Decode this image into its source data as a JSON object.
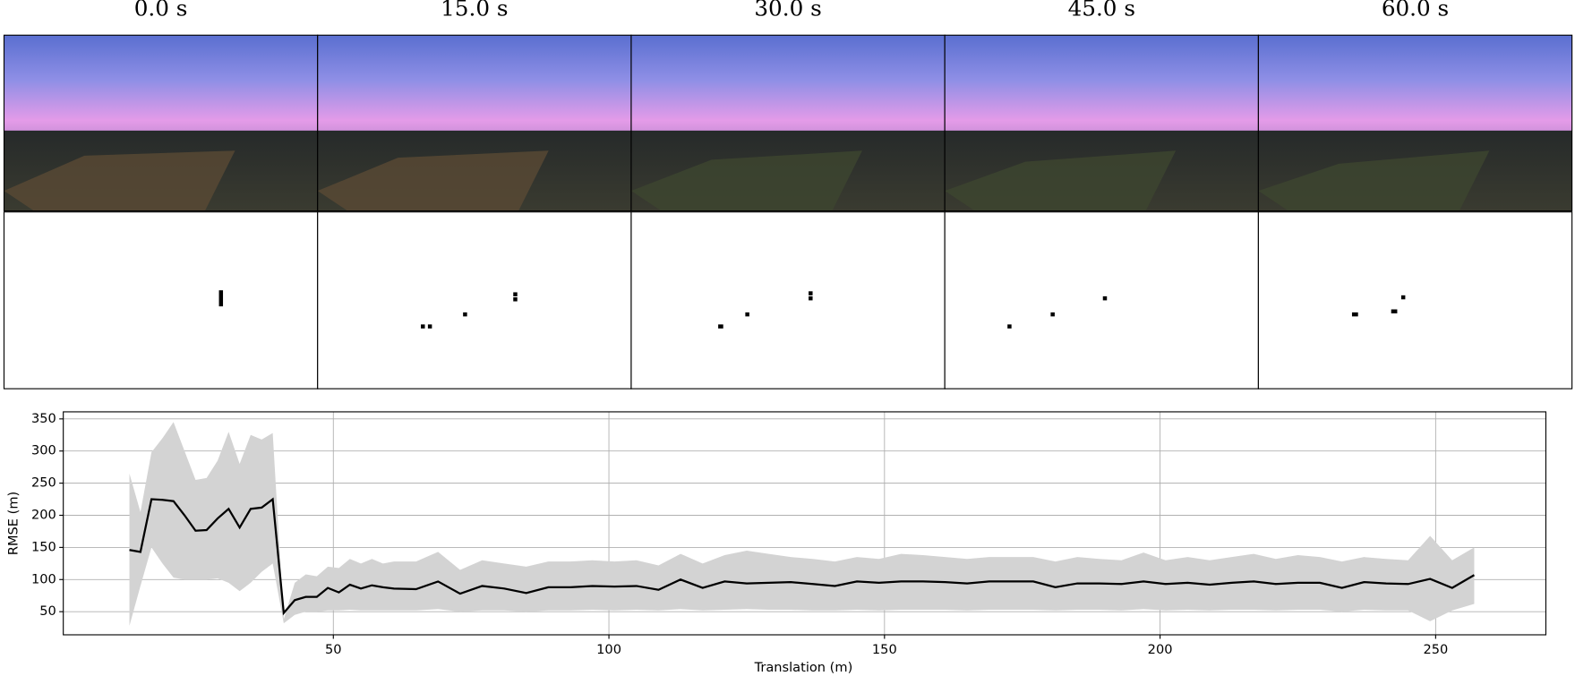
{
  "frames": [
    "0.0 s",
    "15.0 s",
    "30.0 s",
    "45.0 s",
    "60.0 s"
  ],
  "chart_data": {
    "type": "line",
    "x_label": "Translation (m)",
    "y_label": "RMSE (m)",
    "x": [
      13,
      15,
      17,
      19,
      21,
      23,
      25,
      27,
      29,
      31,
      33,
      35,
      37,
      39,
      41,
      43,
      45,
      47,
      49,
      51,
      53,
      55,
      57,
      59,
      61,
      65,
      69,
      73,
      77,
      81,
      85,
      89,
      93,
      97,
      101,
      105,
      109,
      113,
      117,
      121,
      125,
      129,
      133,
      137,
      141,
      145,
      149,
      153,
      157,
      161,
      165,
      169,
      173,
      177,
      181,
      185,
      189,
      193,
      197,
      201,
      205,
      209,
      213,
      217,
      221,
      225,
      229,
      233,
      237,
      241,
      245,
      249,
      253,
      257
    ],
    "values": [
      146,
      143,
      225,
      224,
      222,
      200,
      176,
      177,
      195,
      210,
      181,
      210,
      212,
      225,
      48,
      68,
      73,
      73,
      87,
      80,
      92,
      86,
      91,
      88,
      86,
      85,
      97,
      78,
      90,
      86,
      79,
      88,
      88,
      90,
      89,
      90,
      84,
      100,
      87,
      97,
      94,
      95,
      96,
      93,
      90,
      97,
      95,
      97,
      97,
      96,
      94,
      97,
      97,
      97,
      88,
      94,
      94,
      93,
      97,
      93,
      95,
      92,
      95,
      97,
      93,
      95,
      95,
      87,
      96,
      94,
      93,
      101,
      87,
      107
    ],
    "upper": [
      265,
      205,
      298,
      320,
      345,
      300,
      255,
      258,
      285,
      330,
      280,
      325,
      318,
      328,
      38,
      95,
      108,
      105,
      120,
      118,
      132,
      125,
      132,
      125,
      128,
      128,
      143,
      115,
      130,
      125,
      120,
      128,
      128,
      130,
      128,
      130,
      122,
      140,
      125,
      138,
      145,
      140,
      135,
      132,
      128,
      135,
      132,
      140,
      138,
      135,
      132,
      135,
      135,
      135,
      128,
      135,
      132,
      130,
      142,
      130,
      135,
      130,
      135,
      140,
      132,
      138,
      135,
      128,
      135,
      132,
      130,
      168,
      130,
      150
    ],
    "lower": [
      28,
      90,
      150,
      125,
      103,
      100,
      100,
      100,
      102,
      95,
      82,
      95,
      112,
      125,
      32,
      45,
      50,
      50,
      52,
      52,
      53,
      52,
      52,
      52,
      52,
      52,
      54,
      50,
      52,
      52,
      50,
      52,
      52,
      53,
      52,
      53,
      52,
      54,
      52,
      53,
      54,
      53,
      53,
      52,
      52,
      53,
      52,
      53,
      53,
      53,
      52,
      53,
      53,
      53,
      52,
      53,
      53,
      52,
      54,
      52,
      53,
      52,
      53,
      53,
      52,
      53,
      53,
      50,
      53,
      52,
      52,
      35,
      52,
      62
    ],
    "color": "#000000",
    "band_color": "#d3d3d3",
    "xlim": [
      1,
      270
    ],
    "ylim": [
      14,
      361
    ],
    "xticks": [
      50,
      100,
      150,
      200,
      250
    ],
    "yticks": [
      50,
      100,
      150,
      200,
      250,
      300,
      350
    ],
    "grid": true
  }
}
